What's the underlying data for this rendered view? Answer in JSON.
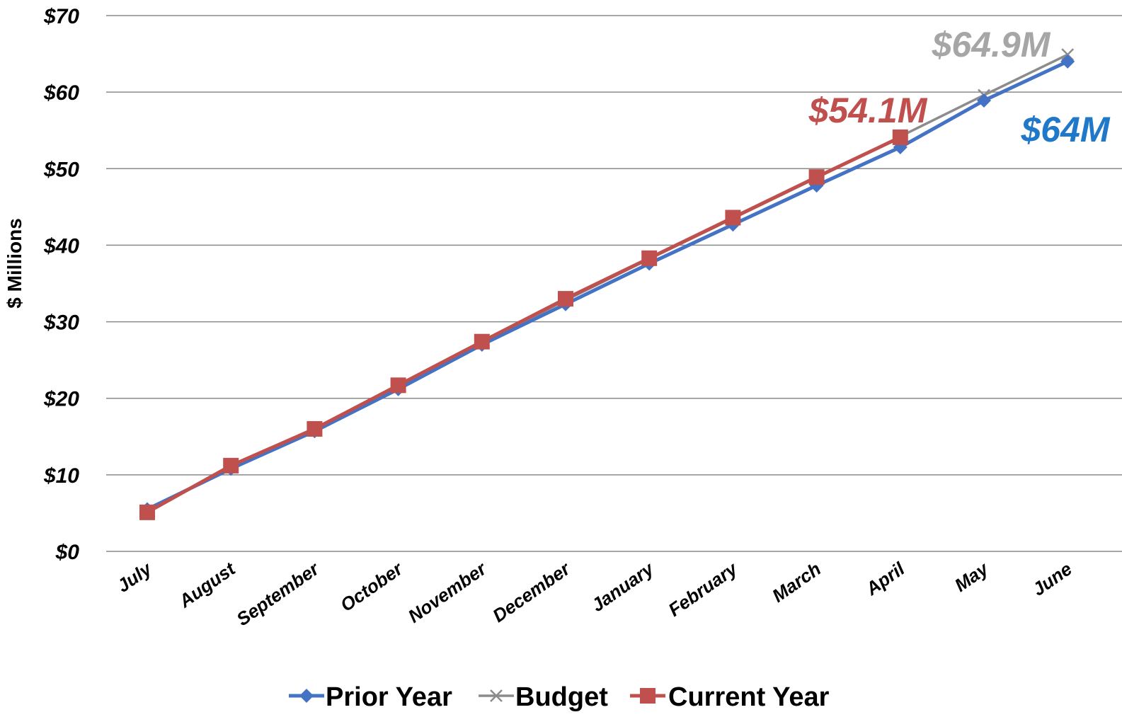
{
  "chart_data": {
    "type": "line",
    "title": "",
    "xlabel": "",
    "ylabel": "$ Millions",
    "ylim": [
      0,
      70
    ],
    "yticks": [
      0,
      10,
      20,
      30,
      40,
      50,
      60,
      70
    ],
    "ytick_labels": [
      "$0",
      "$10",
      "$20",
      "$30",
      "$40",
      "$50",
      "$60",
      "$70"
    ],
    "grid": true,
    "legend_position": "bottom",
    "categories": [
      "July",
      "August",
      "September",
      "October",
      "November",
      "December",
      "January",
      "February",
      "March",
      "April",
      "May",
      "June"
    ],
    "series": [
      {
        "name": "Prior Year",
        "color": "#4472C4",
        "marker": "diamond",
        "values": [
          5.5,
          10.8,
          15.7,
          21.2,
          27.0,
          32.3,
          37.6,
          42.7,
          47.8,
          52.8,
          58.9,
          64.0
        ]
      },
      {
        "name": "Budget",
        "color": "#8C8C8C",
        "marker": "x",
        "values": [
          5.3,
          11.0,
          15.9,
          21.5,
          27.2,
          32.8,
          38.2,
          43.5,
          48.8,
          54.2,
          59.6,
          64.9
        ]
      },
      {
        "name": "Current Year",
        "color": "#C0504D",
        "marker": "square",
        "values": [
          5.1,
          11.2,
          16.0,
          21.7,
          27.4,
          33.0,
          38.3,
          43.6,
          48.9,
          54.1,
          null,
          null
        ]
      }
    ],
    "annotations": [
      {
        "text": "$64.9M",
        "series": "Budget",
        "color": "#A6A6A6"
      },
      {
        "text": "$54.1M",
        "series": "Current Year",
        "color": "#C0504D"
      },
      {
        "text": "$64M",
        "series": "Prior Year",
        "color": "#1F78C8"
      }
    ]
  }
}
